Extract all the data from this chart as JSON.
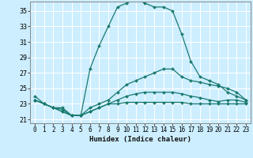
{
  "title": "",
  "xlabel": "Humidex (Indice chaleur)",
  "background_color": "#cceeff",
  "grid_color": "#ffffff",
  "line_color": "#1a7a6e",
  "xlim": [
    -0.5,
    23.5
  ],
  "ylim": [
    20.5,
    36.2
  ],
  "xticks": [
    0,
    1,
    2,
    3,
    4,
    5,
    6,
    7,
    8,
    9,
    10,
    11,
    12,
    13,
    14,
    15,
    16,
    17,
    18,
    19,
    20,
    21,
    22,
    23
  ],
  "yticks": [
    21,
    23,
    25,
    27,
    29,
    31,
    33,
    35
  ],
  "line1_x": [
    0,
    1,
    2,
    3,
    4,
    5,
    6,
    7,
    8,
    9,
    10,
    11,
    12,
    13,
    14,
    15,
    16,
    17,
    18,
    19,
    20,
    21,
    22,
    23
  ],
  "line1_y": [
    24.0,
    23.0,
    22.5,
    22.5,
    21.5,
    21.5,
    27.5,
    30.5,
    33.0,
    35.5,
    36.0,
    36.5,
    36.0,
    35.5,
    35.5,
    35.0,
    32.0,
    28.5,
    26.5,
    26.0,
    25.5,
    24.5,
    24.0,
    23.5
  ],
  "line2_x": [
    0,
    1,
    2,
    3,
    4,
    5,
    6,
    7,
    8,
    9,
    10,
    11,
    12,
    13,
    14,
    15,
    16,
    17,
    18,
    19,
    20,
    21,
    22,
    23
  ],
  "line2_y": [
    23.5,
    23.0,
    22.5,
    22.3,
    21.5,
    21.5,
    22.5,
    23.0,
    23.5,
    24.5,
    25.5,
    26.0,
    26.5,
    27.0,
    27.5,
    27.5,
    26.5,
    26.0,
    25.8,
    25.5,
    25.3,
    25.0,
    24.5,
    23.5
  ],
  "line3_x": [
    0,
    1,
    2,
    3,
    4,
    5,
    6,
    7,
    8,
    9,
    10,
    11,
    12,
    13,
    14,
    15,
    16,
    17,
    18,
    19,
    20,
    21,
    22,
    23
  ],
  "line3_y": [
    23.5,
    23.0,
    22.5,
    22.0,
    21.5,
    21.5,
    22.0,
    22.5,
    23.0,
    23.5,
    24.0,
    24.3,
    24.5,
    24.5,
    24.5,
    24.5,
    24.3,
    24.0,
    23.8,
    23.5,
    23.3,
    23.5,
    23.5,
    23.2
  ],
  "line4_x": [
    0,
    1,
    2,
    3,
    4,
    5,
    6,
    7,
    8,
    9,
    10,
    11,
    12,
    13,
    14,
    15,
    16,
    17,
    18,
    19,
    20,
    21,
    22,
    23
  ],
  "line4_y": [
    23.5,
    23.0,
    22.5,
    22.0,
    21.5,
    21.5,
    22.0,
    22.5,
    23.0,
    23.0,
    23.2,
    23.2,
    23.2,
    23.2,
    23.2,
    23.2,
    23.2,
    23.0,
    23.0,
    23.0,
    23.0,
    23.0,
    23.0,
    23.0
  ]
}
